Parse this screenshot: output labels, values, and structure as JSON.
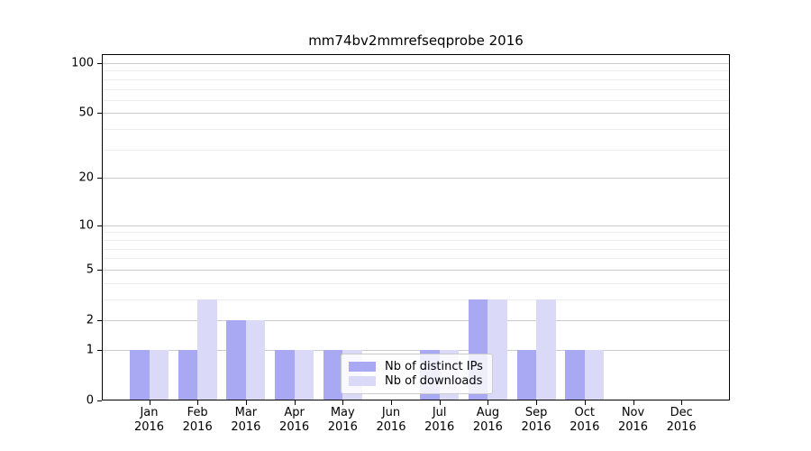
{
  "chart_data": {
    "type": "bar",
    "title": "mm74bv2mmrefseqprobe 2016",
    "year_label": "2016",
    "months": [
      "Jan",
      "Feb",
      "Mar",
      "Apr",
      "May",
      "Jun",
      "Jul",
      "Aug",
      "Sep",
      "Oct",
      "Nov",
      "Dec"
    ],
    "series": [
      {
        "name": "Nb of distinct IPs",
        "color": "#a9a9f3",
        "values": [
          1,
          1,
          2,
          1,
          1,
          0,
          1,
          3,
          1,
          1,
          0,
          0
        ]
      },
      {
        "name": "Nb of downloads",
        "color": "#dadaf8",
        "values": [
          1,
          3,
          2,
          1,
          1,
          0,
          1,
          3,
          3,
          1,
          0,
          0
        ]
      }
    ],
    "yscale": "log1p",
    "yticks": [
      0,
      1,
      2,
      5,
      10,
      20,
      50,
      100
    ],
    "minor_gridlines": [
      3,
      4,
      6,
      7,
      8,
      9,
      30,
      40,
      60,
      70,
      80,
      90
    ],
    "ylim": [
      0,
      110
    ],
    "grid": "on",
    "legend_position": "inside-bottom-center",
    "colors": {
      "major_grid": "#cccccc",
      "minor_grid": "#ededed",
      "axis": "#000000",
      "text": "#000000",
      "legend_border": "#cccccc",
      "legend_background": "rgba(255,255,255,0.8)"
    }
  }
}
